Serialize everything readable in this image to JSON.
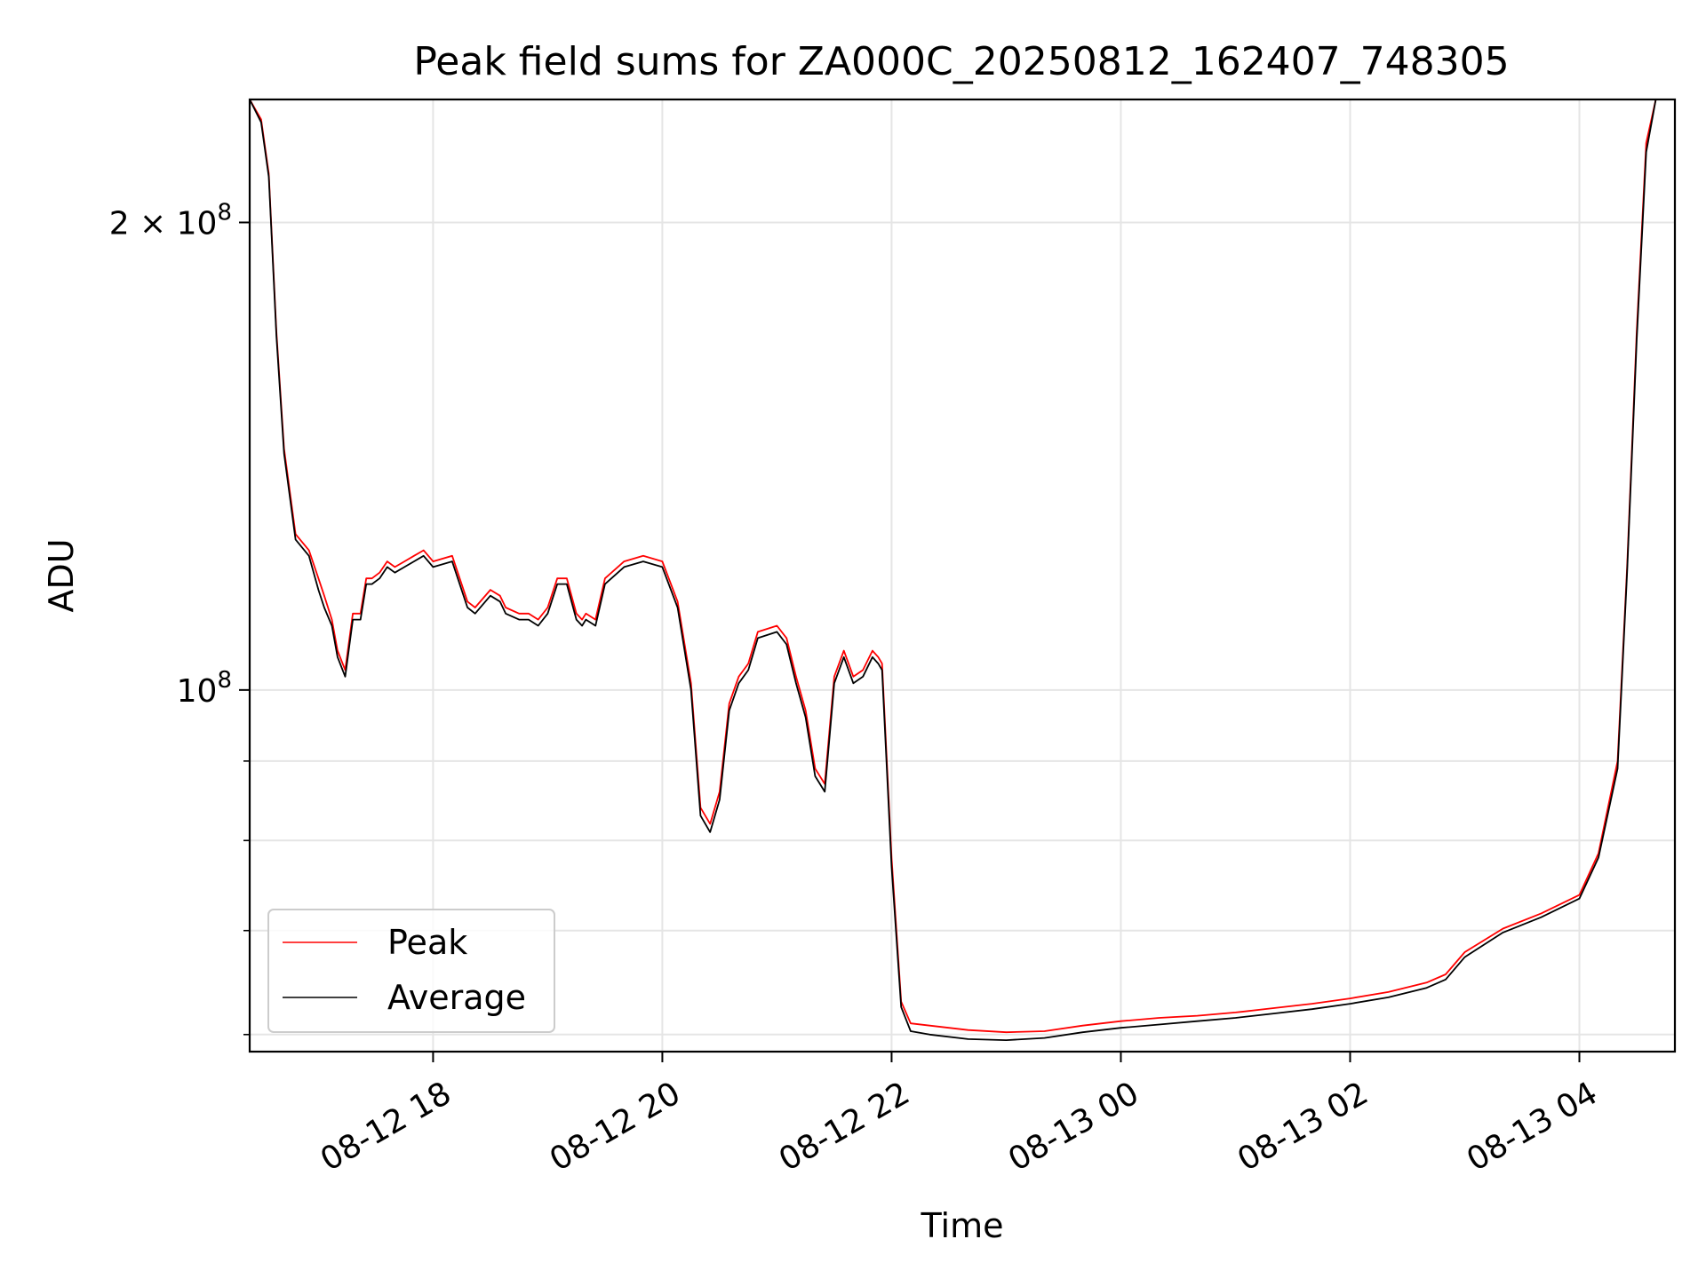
{
  "chart_data": {
    "type": "line",
    "title": "Peak field sums for ZA000C_20250812_162407_748305",
    "xlabel": "Time",
    "ylabel": "ADU",
    "x_scale": "time",
    "y_scale": "log",
    "xlim": [
      "2025-08-12 16:24",
      "2025-08-13 04:50"
    ],
    "ylim": [
      58500000,
      240000000
    ],
    "grid": true,
    "legend_position": "lower-left",
    "x_ticks": [
      {
        "t": "2025-08-12 18:00",
        "label": "08-12 18"
      },
      {
        "t": "2025-08-12 20:00",
        "label": "08-12 20"
      },
      {
        "t": "2025-08-12 22:00",
        "label": "08-12 22"
      },
      {
        "t": "2025-08-13 00:00",
        "label": "08-13 00"
      },
      {
        "t": "2025-08-13 02:00",
        "label": "08-13 02"
      },
      {
        "t": "2025-08-13 04:00",
        "label": "08-13 04"
      }
    ],
    "y_ticks": [
      {
        "value": 200000000,
        "label": "2 × 10⁸",
        "mantissa": "2 × 10",
        "exp": "8"
      },
      {
        "value": 100000000,
        "label": "10⁸",
        "mantissa": "10",
        "exp": "8"
      }
    ],
    "y_minor_ticks": [
      60000000,
      70000000,
      80000000,
      90000000
    ],
    "series": [
      {
        "name": "Peak",
        "color": "#ff0000",
        "x": [
          "2025-08-12 16:24",
          "2025-08-12 16:30",
          "2025-08-12 16:34",
          "2025-08-12 16:38",
          "2025-08-12 16:42",
          "2025-08-12 16:48",
          "2025-08-12 16:55",
          "2025-08-12 17:00",
          "2025-08-12 17:03",
          "2025-08-12 17:07",
          "2025-08-12 17:10",
          "2025-08-12 17:14",
          "2025-08-12 17:18",
          "2025-08-12 17:22",
          "2025-08-12 17:25",
          "2025-08-12 17:28",
          "2025-08-12 17:32",
          "2025-08-12 17:36",
          "2025-08-12 17:40",
          "2025-08-12 17:45",
          "2025-08-12 17:50",
          "2025-08-12 17:55",
          "2025-08-12 18:00",
          "2025-08-12 18:10",
          "2025-08-12 18:18",
          "2025-08-12 18:22",
          "2025-08-12 18:30",
          "2025-08-12 18:35",
          "2025-08-12 18:38",
          "2025-08-12 18:45",
          "2025-08-12 18:50",
          "2025-08-12 18:55",
          "2025-08-12 19:00",
          "2025-08-12 19:05",
          "2025-08-12 19:10",
          "2025-08-12 19:15",
          "2025-08-12 19:18",
          "2025-08-12 19:20",
          "2025-08-12 19:25",
          "2025-08-12 19:30",
          "2025-08-12 19:40",
          "2025-08-12 19:50",
          "2025-08-12 20:00",
          "2025-08-12 20:08",
          "2025-08-12 20:15",
          "2025-08-12 20:20",
          "2025-08-12 20:25",
          "2025-08-12 20:30",
          "2025-08-12 20:35",
          "2025-08-12 20:40",
          "2025-08-12 20:45",
          "2025-08-12 20:50",
          "2025-08-12 21:00",
          "2025-08-12 21:05",
          "2025-08-12 21:10",
          "2025-08-12 21:15",
          "2025-08-12 21:20",
          "2025-08-12 21:25",
          "2025-08-12 21:30",
          "2025-08-12 21:35",
          "2025-08-12 21:40",
          "2025-08-12 21:45",
          "2025-08-12 21:50",
          "2025-08-12 21:53",
          "2025-08-12 21:55",
          "2025-08-12 22:00",
          "2025-08-12 22:05",
          "2025-08-12 22:10",
          "2025-08-12 22:20",
          "2025-08-12 22:40",
          "2025-08-12 23:00",
          "2025-08-12 23:20",
          "2025-08-12 23:40",
          "2025-08-13 00:00",
          "2025-08-13 00:20",
          "2025-08-13 00:40",
          "2025-08-13 01:00",
          "2025-08-13 01:20",
          "2025-08-13 01:40",
          "2025-08-13 02:00",
          "2025-08-13 02:20",
          "2025-08-13 02:40",
          "2025-08-13 02:50",
          "2025-08-13 03:00",
          "2025-08-13 03:20",
          "2025-08-13 03:40",
          "2025-08-13 04:00",
          "2025-08-13 04:10",
          "2025-08-13 04:20",
          "2025-08-13 04:25",
          "2025-08-13 04:30",
          "2025-08-13 04:35",
          "2025-08-13 04:40"
        ],
        "values": [
          240000000,
          233000000,
          215000000,
          170000000,
          143000000,
          126000000,
          123000000,
          118000000,
          115000000,
          111000000,
          106000000,
          103000000,
          112000000,
          112000000,
          118000000,
          118000000,
          119000000,
          121000000,
          120000000,
          121000000,
          122000000,
          123000000,
          121000000,
          122000000,
          114000000,
          113000000,
          116000000,
          115000000,
          113000000,
          112000000,
          112000000,
          111000000,
          113000000,
          118000000,
          118000000,
          112000000,
          111000000,
          112000000,
          111000000,
          118000000,
          121000000,
          122000000,
          121000000,
          114000000,
          101000000,
          84000000,
          82000000,
          86000000,
          98000000,
          102000000,
          104000000,
          109000000,
          110000000,
          108000000,
          102000000,
          97000000,
          89000000,
          87000000,
          102000000,
          106000000,
          102000000,
          103000000,
          106000000,
          105000000,
          104000000,
          78000000,
          63000000,
          61000000,
          60800000,
          60400000,
          60200000,
          60300000,
          60800000,
          61200000,
          61500000,
          61700000,
          62000000,
          62400000,
          62800000,
          63300000,
          63900000,
          64800000,
          65600000,
          67800000,
          70200000,
          71800000,
          73800000,
          78500000,
          90000000,
          120000000,
          170000000,
          225000000,
          240000000
        ]
      },
      {
        "name": "Average",
        "color": "#000000",
        "x": [
          "2025-08-12 16:24",
          "2025-08-12 16:30",
          "2025-08-12 16:34",
          "2025-08-12 16:38",
          "2025-08-12 16:42",
          "2025-08-12 16:48",
          "2025-08-12 16:55",
          "2025-08-12 17:00",
          "2025-08-12 17:03",
          "2025-08-12 17:07",
          "2025-08-12 17:10",
          "2025-08-12 17:14",
          "2025-08-12 17:18",
          "2025-08-12 17:22",
          "2025-08-12 17:25",
          "2025-08-12 17:28",
          "2025-08-12 17:32",
          "2025-08-12 17:36",
          "2025-08-12 17:40",
          "2025-08-12 17:45",
          "2025-08-12 17:50",
          "2025-08-12 17:55",
          "2025-08-12 18:00",
          "2025-08-12 18:10",
          "2025-08-12 18:18",
          "2025-08-12 18:22",
          "2025-08-12 18:30",
          "2025-08-12 18:35",
          "2025-08-12 18:38",
          "2025-08-12 18:45",
          "2025-08-12 18:50",
          "2025-08-12 18:55",
          "2025-08-12 19:00",
          "2025-08-12 19:05",
          "2025-08-12 19:10",
          "2025-08-12 19:15",
          "2025-08-12 19:18",
          "2025-08-12 19:20",
          "2025-08-12 19:25",
          "2025-08-12 19:30",
          "2025-08-12 19:40",
          "2025-08-12 19:50",
          "2025-08-12 20:00",
          "2025-08-12 20:08",
          "2025-08-12 20:15",
          "2025-08-12 20:20",
          "2025-08-12 20:25",
          "2025-08-12 20:30",
          "2025-08-12 20:35",
          "2025-08-12 20:40",
          "2025-08-12 20:45",
          "2025-08-12 20:50",
          "2025-08-12 21:00",
          "2025-08-12 21:05",
          "2025-08-12 21:10",
          "2025-08-12 21:15",
          "2025-08-12 21:20",
          "2025-08-12 21:25",
          "2025-08-12 21:30",
          "2025-08-12 21:35",
          "2025-08-12 21:40",
          "2025-08-12 21:45",
          "2025-08-12 21:50",
          "2025-08-12 21:53",
          "2025-08-12 21:55",
          "2025-08-12 22:00",
          "2025-08-12 22:05",
          "2025-08-12 22:10",
          "2025-08-12 22:20",
          "2025-08-12 22:40",
          "2025-08-12 23:00",
          "2025-08-12 23:20",
          "2025-08-12 23:40",
          "2025-08-13 00:00",
          "2025-08-13 00:20",
          "2025-08-13 00:40",
          "2025-08-13 01:00",
          "2025-08-13 01:20",
          "2025-08-13 01:40",
          "2025-08-13 02:00",
          "2025-08-13 02:20",
          "2025-08-13 02:40",
          "2025-08-13 02:50",
          "2025-08-13 03:00",
          "2025-08-13 03:20",
          "2025-08-13 03:40",
          "2025-08-13 04:00",
          "2025-08-13 04:10",
          "2025-08-13 04:20",
          "2025-08-13 04:25",
          "2025-08-13 04:30",
          "2025-08-13 04:35",
          "2025-08-13 04:40"
        ],
        "values": [
          240000000,
          232000000,
          214000000,
          169000000,
          142000000,
          125000000,
          122000000,
          116000000,
          113000000,
          110000000,
          105000000,
          102000000,
          111000000,
          111000000,
          117000000,
          117000000,
          118000000,
          120000000,
          119000000,
          120000000,
          121000000,
          122000000,
          120000000,
          121000000,
          113000000,
          112000000,
          115000000,
          114000000,
          112000000,
          111000000,
          111000000,
          110000000,
          112000000,
          117000000,
          117000000,
          111000000,
          110000000,
          111000000,
          110000000,
          117000000,
          120000000,
          121000000,
          120000000,
          113000000,
          100000000,
          83000000,
          81000000,
          85000000,
          97000000,
          101000000,
          103000000,
          108000000,
          109000000,
          107000000,
          101000000,
          96000000,
          88000000,
          86000000,
          101000000,
          105000000,
          101000000,
          102000000,
          105000000,
          104000000,
          103000000,
          77000000,
          62500000,
          60300000,
          60000000,
          59600000,
          59500000,
          59700000,
          60200000,
          60600000,
          60900000,
          61200000,
          61500000,
          61900000,
          62300000,
          62800000,
          63400000,
          64300000,
          65100000,
          67300000,
          69800000,
          71400000,
          73400000,
          78000000,
          89000000,
          119000000,
          168000000,
          222000000,
          240000000
        ]
      }
    ]
  }
}
